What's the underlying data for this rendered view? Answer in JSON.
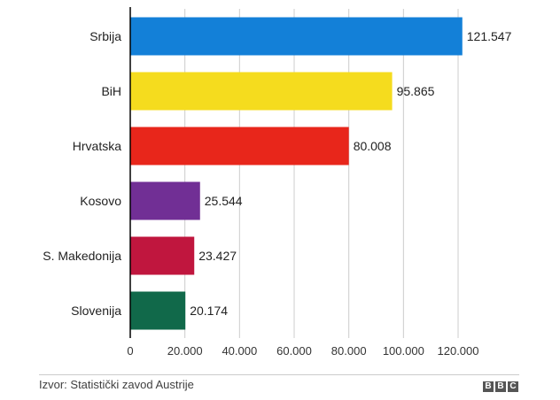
{
  "chart_data": {
    "type": "bar",
    "orientation": "horizontal",
    "categories": [
      "Srbija",
      "BiH",
      "Hrvatska",
      "Kosovo",
      "S. Makedonija",
      "Slovenija"
    ],
    "values": [
      121547,
      95865,
      80008,
      25544,
      23427,
      20174
    ],
    "value_labels": [
      "121.547",
      "95.865",
      "80.008",
      "25.544",
      "23.427",
      "20.174"
    ],
    "colors": [
      "#1380d8",
      "#f5dc1e",
      "#e8261b",
      "#712f95",
      "#c0163e",
      "#11694a"
    ],
    "xlim": [
      0,
      120000
    ],
    "x_ticks": [
      0,
      20000,
      40000,
      60000,
      80000,
      100000,
      120000
    ],
    "x_tick_labels": [
      "0",
      "20.000",
      "40.000",
      "60.000",
      "80.000",
      "100.000",
      "120.000"
    ],
    "grid": true,
    "title": "",
    "xlabel": "",
    "ylabel": ""
  },
  "footer": {
    "source": "Izvor: Statistički zavod Austrije",
    "logo_letters": [
      "B",
      "B",
      "C"
    ]
  }
}
